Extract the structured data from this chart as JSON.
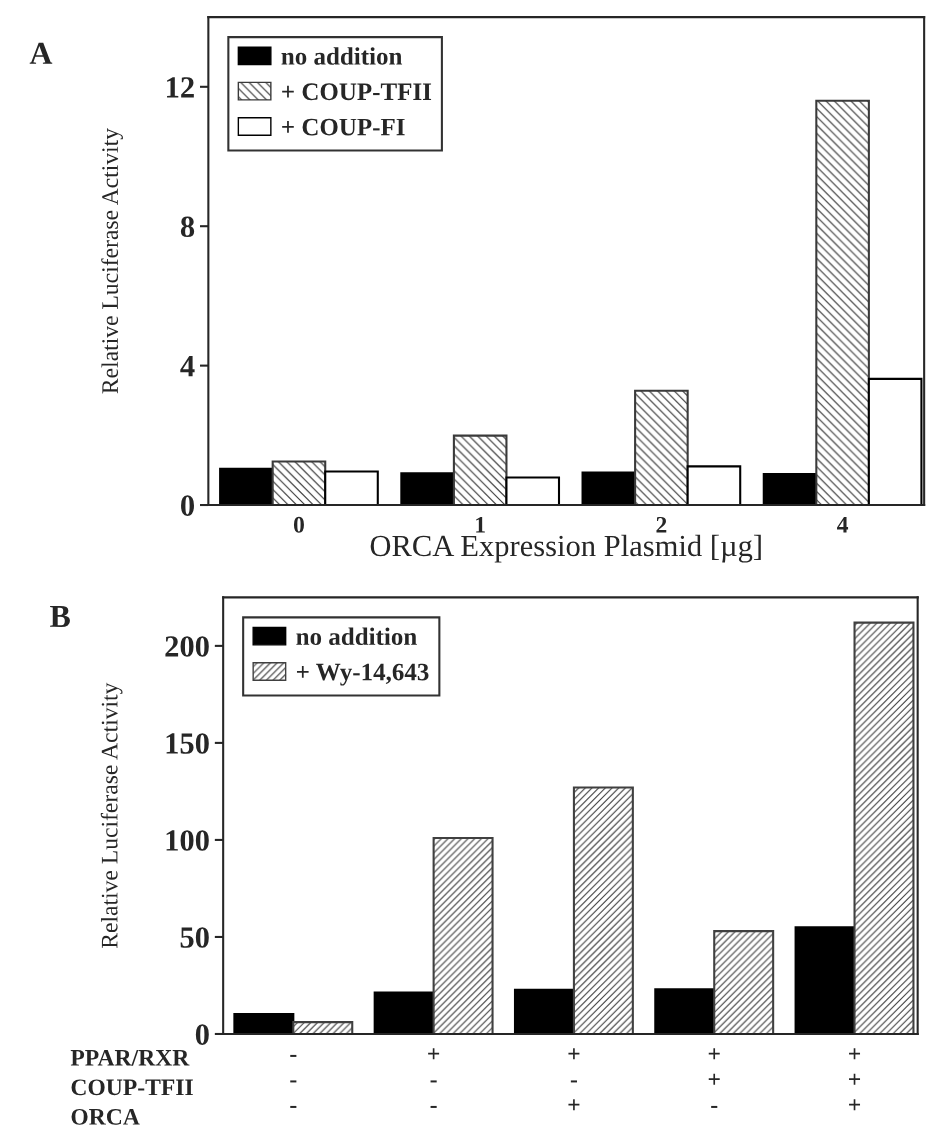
{
  "chart_data": [
    {
      "type": "bar",
      "title": "A",
      "categories": [
        "0",
        "1",
        "2",
        "4"
      ],
      "xlabel": "ORCA Expression Plasmid [µg]",
      "ylabel": "Relative Luciferase Activity",
      "ylim": [
        0,
        14
      ],
      "yticks": [
        0,
        4,
        8,
        12
      ],
      "legend": "top left",
      "series": [
        {
          "name": "no addition",
          "color": "#000000",
          "values": [
            1.04,
            0.91,
            0.93,
            0.89
          ]
        },
        {
          "name": "+ COUP-TFII",
          "color": "#3a3a3a",
          "values": [
            1.25,
            1.99,
            3.28,
            11.6
          ]
        },
        {
          "name": "+ COUP-FI",
          "color": "#ffffff",
          "values": [
            0.96,
            0.79,
            1.11,
            3.62
          ]
        }
      ]
    },
    {
      "type": "bar",
      "title": "B",
      "categories": [
        "-\n-\n-",
        "+\n-\n-",
        "+\n-\n+",
        "+\n+\n-",
        "+\n+\n+"
      ],
      "ylabel": "Relative Luciferase Activity",
      "ylim": [
        0,
        225
      ],
      "yticks": [
        0,
        50,
        100,
        150,
        200
      ],
      "legend": "top left",
      "annotations": [
        "PPAR/RXR",
        "COUP-TFII",
        "ORCA"
      ],
      "series": [
        {
          "name": "no addition",
          "color": "#000000",
          "values": [
            10.3,
            21.3,
            22.8,
            23,
            55
          ]
        },
        {
          "name": "+ Wy-14,643",
          "color": "#404040",
          "values": [
            6.1,
            101,
            127,
            53,
            212
          ]
        }
      ]
    }
  ]
}
